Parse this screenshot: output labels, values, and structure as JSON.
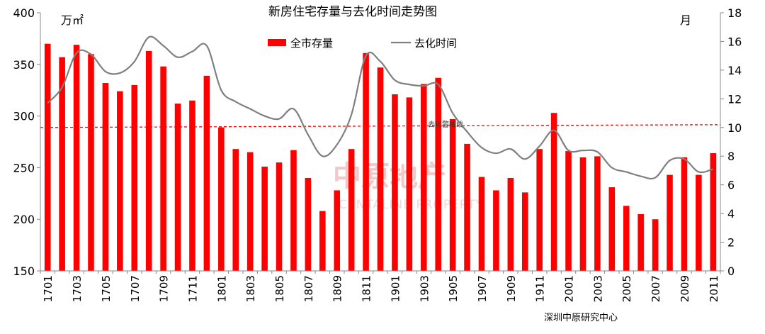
{
  "chart_data": {
    "type": "bar+line",
    "title": "新房住宅存量与去化时间走势图",
    "left_unit": "万㎡",
    "right_unit": "月",
    "y_left_range": [
      150,
      400
    ],
    "y_left_ticks": [
      150,
      200,
      250,
      300,
      350,
      400
    ],
    "y_right_range": [
      0,
      18
    ],
    "y_right_ticks": [
      0,
      2,
      4,
      6,
      8,
      10,
      12,
      14,
      16,
      18
    ],
    "categories": [
      "1701",
      "1702",
      "1703",
      "1704",
      "1705",
      "1706",
      "1707",
      "1708",
      "1709",
      "1710",
      "1711",
      "1712",
      "1801",
      "1802",
      "1803",
      "1804",
      "1805",
      "1806",
      "1807",
      "1808",
      "1809",
      "1810",
      "1811",
      "1812",
      "1901",
      "1902",
      "1903",
      "1904",
      "1905",
      "1906",
      "1907",
      "1908",
      "1909",
      "1910",
      "1911",
      "1912",
      "2001",
      "2002",
      "2003",
      "2004",
      "2005",
      "2006",
      "2007",
      "2008",
      "2009",
      "2010",
      "2011"
    ],
    "x_tick_labels": [
      "1701",
      "1703",
      "1705",
      "1707",
      "1709",
      "1711",
      "1801",
      "1803",
      "1805",
      "1807",
      "1809",
      "1811",
      "1901",
      "1903",
      "1905",
      "1907",
      "1909",
      "1911",
      "2001",
      "2003",
      "2005",
      "2007",
      "2009",
      "2011"
    ],
    "series": [
      {
        "name": "全市存量",
        "kind": "bar",
        "axis": "left",
        "color": "#ff0000",
        "values": [
          370,
          357,
          369,
          360,
          332,
          324,
          330,
          363,
          348,
          312,
          315,
          339,
          289,
          268,
          265,
          251,
          255,
          267,
          240,
          208,
          228,
          268,
          361,
          347,
          321,
          318,
          331,
          337,
          297,
          273,
          241,
          228,
          240,
          226,
          268,
          303,
          266,
          260,
          261,
          231,
          213,
          205,
          200,
          243,
          260,
          243,
          264
        ]
      },
      {
        "name": "去化时间",
        "kind": "line",
        "axis": "right",
        "color": "#7f7f7f",
        "values": [
          11.7,
          12.8,
          15.2,
          15.1,
          13.9,
          13.8,
          14.6,
          16.3,
          15.7,
          14.9,
          15.3,
          15.7,
          12.6,
          11.8,
          11.3,
          10.8,
          10.6,
          11.3,
          9.5,
          8.0,
          8.8,
          10.9,
          15.0,
          14.6,
          13.3,
          13.0,
          12.9,
          13.0,
          11.0,
          9.7,
          8.6,
          8.2,
          8.5,
          7.8,
          8.7,
          9.8,
          8.4,
          8.4,
          8.3,
          7.2,
          6.9,
          6.6,
          6.5,
          7.7,
          7.8,
          6.9,
          7.1
        ]
      }
    ],
    "reference_line": {
      "label": "去化警戒线",
      "axis": "right",
      "value": 10,
      "color": "#ff0000",
      "style": "dashed"
    },
    "legend_position": "top-center",
    "grid": false
  },
  "watermark": {
    "text_cn": "中原地产",
    "text_en": "CENTALINE PROPERTY"
  },
  "source": "深圳中原研究中心"
}
